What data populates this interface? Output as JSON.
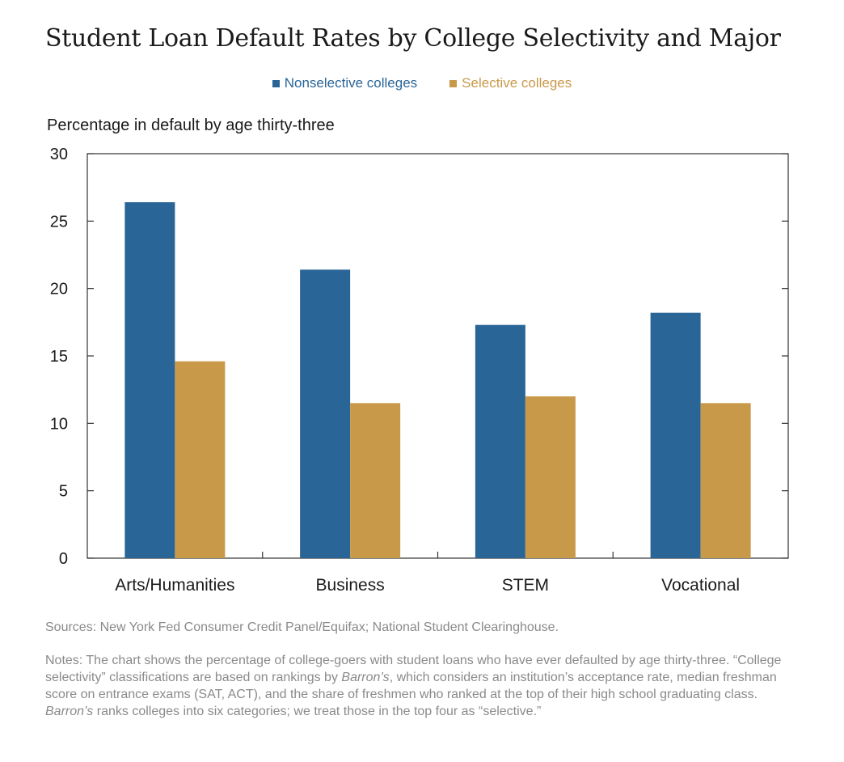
{
  "chart_data": {
    "type": "bar",
    "title": "Student Loan Default Rates by College Selectivity and Major",
    "ylabel": "Percentage in default by age thirty-three",
    "xlabel": "",
    "ylim": [
      0,
      30
    ],
    "yticks": [
      "0",
      "5",
      "10",
      "15",
      "20",
      "25",
      "30"
    ],
    "categories": [
      "Arts/Humanities",
      "Business",
      "STEM",
      "Vocational"
    ],
    "series": [
      {
        "name": "Nonselective colleges",
        "color": "#2a6597",
        "values": [
          26.4,
          21.4,
          17.3,
          18.2
        ]
      },
      {
        "name": "Selective colleges",
        "color": "#c9994a",
        "values": [
          14.6,
          11.5,
          12.0,
          11.5
        ]
      }
    ],
    "legend_position": "top-center",
    "grid": false
  },
  "footer": {
    "sources": "Sources: New York Fed Consumer Credit Panel/Equifax; National Student Clearinghouse.",
    "notes_parts": [
      "Notes: The chart shows the percentage of college-goers with student loans who have ever defaulted by age thirty-three. “College selectivity” classifications are based on rankings by ",
      "Barron’s",
      ", which considers an institution’s acceptance rate, median freshman score on entrance exams (SAT, ACT), and the share of freshmen who ranked at the top of their high school graduating class. ",
      "Barron’s",
      " ranks colleges into six categories; we treat those in the top four as “selective.”"
    ]
  }
}
